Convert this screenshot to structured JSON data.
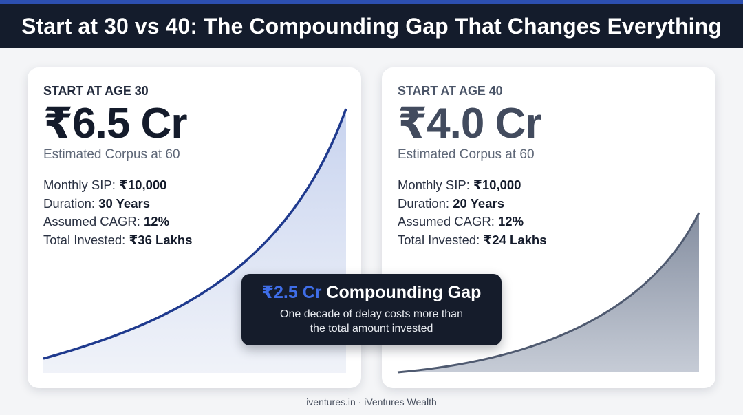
{
  "header": {
    "title": "Start at 30 vs 40: The Compounding Gap That Changes Everything"
  },
  "cards": [
    {
      "kicker": "START AT AGE 30",
      "amount": "₹6.5 Cr",
      "subtitle": "Estimated Corpus at 60",
      "details": [
        {
          "label": "Monthly SIP: ",
          "value": "₹10,000"
        },
        {
          "label": "Duration: ",
          "value": "30 Years"
        },
        {
          "label": "Assumed CAGR: ",
          "value": "12%"
        },
        {
          "label": "Total Invested: ",
          "value": "₹36 Lakhs"
        }
      ],
      "curve_color": "#1f3a8e"
    },
    {
      "kicker": "START AT AGE 40",
      "amount": "₹4.0 Cr",
      "subtitle": "Estimated Corpus at 60",
      "details": [
        {
          "label": "Monthly SIP: ",
          "value": "₹10,000"
        },
        {
          "label": "Duration: ",
          "value": "20 Years"
        },
        {
          "label": "Assumed CAGR: ",
          "value": "12%"
        },
        {
          "label": "Total Invested: ",
          "value": "₹24 Lakhs"
        }
      ],
      "curve_color": "#4f5a70"
    }
  ],
  "callout": {
    "accent": "₹2.5 Cr",
    "title": " Compounding Gap",
    "line1": "One decade of delay costs more than",
    "line2": "the total amount invested"
  },
  "footer": {
    "text": "iventures.in · iVentures Wealth"
  }
}
